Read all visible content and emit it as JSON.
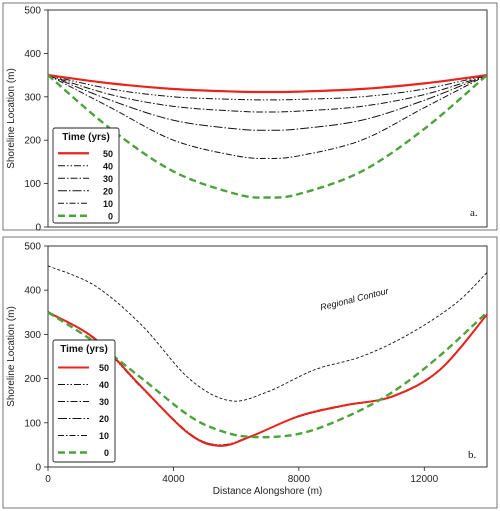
{
  "chart_data": [
    {
      "type": "line",
      "panel_label": "a.",
      "xlabel": "",
      "ylabel": "Shoreline Location (m)",
      "xlim": [
        0,
        14000
      ],
      "ylim": [
        0,
        500
      ],
      "yticks": [
        0,
        100,
        200,
        300,
        400,
        500
      ],
      "xticks": [],
      "legend_title": "Time (yrs)",
      "legend_position": "lower-left",
      "series": [
        {
          "name": "50",
          "color": "#e8241c",
          "dash": "solid",
          "width": 2.2,
          "x": [
            0,
            2000,
            4000,
            6000,
            7000,
            8000,
            10000,
            12000,
            14000
          ],
          "y": [
            350,
            331,
            318,
            312,
            311,
            312,
            318,
            331,
            350
          ]
        },
        {
          "name": "40",
          "color": "#111111",
          "dash": "7 2 1.5 2 1.5 2",
          "width": 1,
          "x": [
            0,
            2000,
            4000,
            6000,
            7000,
            8000,
            10000,
            12000,
            14000
          ],
          "y": [
            350,
            318,
            300,
            294,
            293,
            294,
            300,
            318,
            350
          ]
        },
        {
          "name": "30",
          "color": "#111111",
          "dash": "7 2 1.5 2",
          "width": 1,
          "x": [
            0,
            2000,
            4000,
            6000,
            7000,
            8000,
            10000,
            12000,
            14000
          ],
          "y": [
            350,
            305,
            278,
            267,
            265,
            267,
            278,
            305,
            350
          ]
        },
        {
          "name": "20",
          "color": "#111111",
          "dash": "9 2 1.5 2",
          "width": 1,
          "x": [
            0,
            2000,
            4000,
            6000,
            7000,
            8000,
            10000,
            12000,
            14000
          ],
          "y": [
            350,
            292,
            246,
            226,
            223,
            226,
            246,
            292,
            350
          ]
        },
        {
          "name": "10",
          "color": "#111111",
          "dash": "6 2 1.5 2",
          "width": 1,
          "x": [
            0,
            2000,
            4000,
            6000,
            7000,
            8000,
            10000,
            12000,
            14000
          ],
          "y": [
            350,
            275,
            200,
            164,
            158,
            164,
            200,
            275,
            350
          ]
        },
        {
          "name": "0",
          "color": "#4ca33b",
          "dash": "7 4",
          "width": 2.4,
          "x": [
            0,
            2000,
            4000,
            6000,
            7000,
            8000,
            10000,
            12000,
            14000
          ],
          "y": [
            350,
            226,
            128,
            76,
            68,
            76,
            128,
            226,
            350
          ]
        }
      ]
    },
    {
      "type": "line",
      "panel_label": "b.",
      "xlabel": "Distance Alongshore (m)",
      "ylabel": "Shoreline Location (m)",
      "xlim": [
        0,
        14000
      ],
      "ylim": [
        0,
        500
      ],
      "yticks": [
        0,
        100,
        200,
        300,
        400,
        500
      ],
      "xticks": [
        0,
        4000,
        8000,
        12000
      ],
      "legend_title": "Time (yrs)",
      "legend_position": "lower-left",
      "annotation": "Regional Contour",
      "series": [
        {
          "name": "Regional Contour",
          "color": "#111111",
          "dash": "3 2",
          "width": 0.9,
          "x": [
            0,
            1500,
            3000,
            4500,
            5800,
            7000,
            8500,
            10000,
            11500,
            13000,
            14000
          ],
          "y": [
            455,
            410,
            320,
            200,
            150,
            170,
            220,
            250,
            300,
            370,
            440
          ]
        },
        {
          "name": "50",
          "color": "#e8241c",
          "dash": "solid",
          "width": 2,
          "x": [
            0,
            1500,
            3000,
            4500,
            5500,
            6500,
            8000,
            9500,
            11000,
            12500,
            14000
          ],
          "y": [
            350,
            290,
            180,
            75,
            48,
            70,
            115,
            140,
            160,
            220,
            345
          ]
        },
        {
          "name": "40",
          "color": "#111111",
          "dash": "7 2 1.5 2 1.5 2",
          "width": 1,
          "x": [
            0,
            1500,
            3000,
            4500,
            5500,
            6500,
            8000,
            9500,
            11000,
            12500,
            14000
          ],
          "y": [
            352,
            288,
            178,
            76,
            50,
            71,
            114,
            139,
            161,
            221,
            346
          ]
        },
        {
          "name": "30",
          "color": "#111111",
          "dash": "7 2 1.5 2",
          "width": 1,
          "x": [
            0,
            1500,
            3000,
            4500,
            5500,
            6500,
            8000,
            9500,
            11000,
            12500,
            14000
          ],
          "y": [
            349,
            291,
            181,
            77,
            49,
            69,
            116,
            141,
            159,
            219,
            344
          ]
        },
        {
          "name": "20",
          "color": "#111111",
          "dash": "9 2 1.5 2",
          "width": 1,
          "x": [
            0,
            1500,
            3000,
            4500,
            5500,
            6500,
            8000,
            9500,
            11000,
            12500,
            14000
          ],
          "y": [
            351,
            289,
            179,
            74,
            47,
            71,
            114,
            140,
            161,
            221,
            346
          ]
        },
        {
          "name": "10",
          "color": "#111111",
          "dash": "6 2 1.5 2",
          "width": 1,
          "x": [
            0,
            1500,
            3000,
            4500,
            5500,
            6500,
            8000,
            9500,
            11000,
            12500,
            14000
          ],
          "y": [
            350,
            290,
            180,
            76,
            49,
            70,
            115,
            140,
            160,
            220,
            345
          ]
        },
        {
          "name": "0",
          "color": "#4ca33b",
          "dash": "7 4",
          "width": 2.4,
          "x": [
            0,
            1500,
            3000,
            4500,
            5500,
            6500,
            8000,
            9500,
            11000,
            12500,
            14000
          ],
          "y": [
            350,
            282,
            200,
            116,
            82,
            68,
            75,
            113,
            170,
            252,
            350
          ]
        }
      ]
    }
  ]
}
